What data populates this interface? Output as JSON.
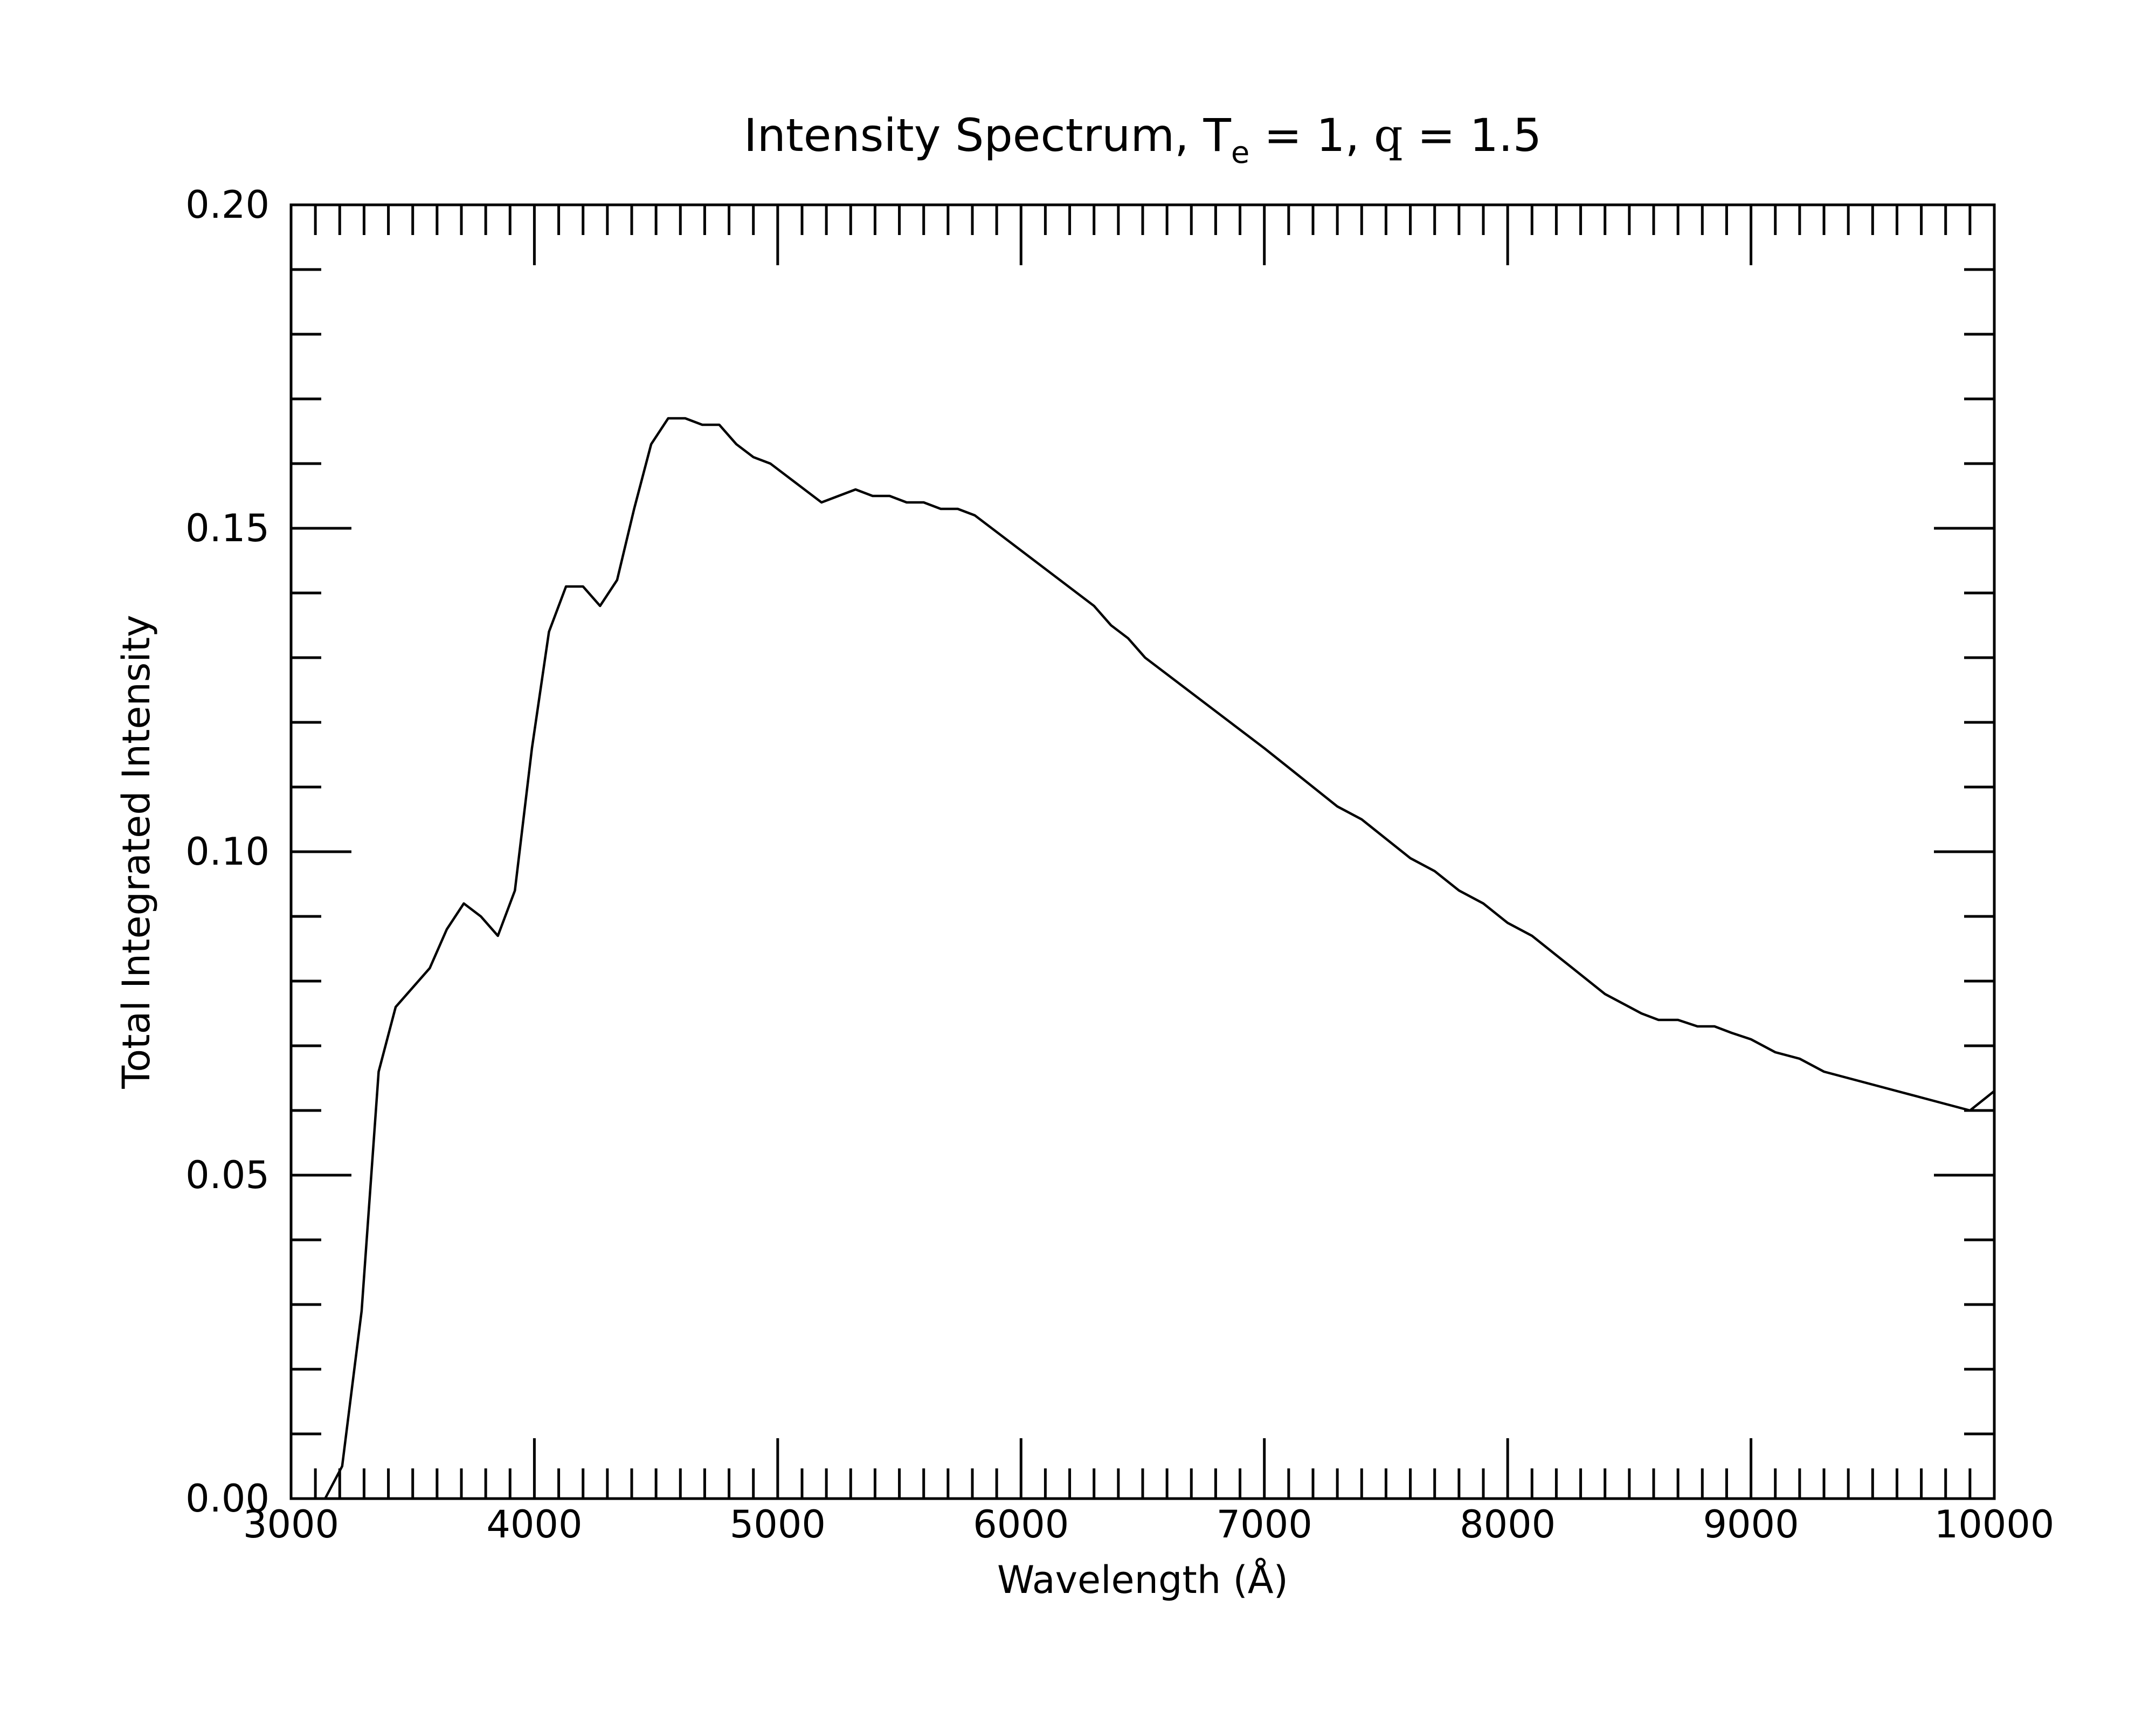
{
  "chart_data": {
    "type": "line",
    "title": {
      "prefix": "Intensity Spectrum, T",
      "subscript": "e",
      "mid": " = 1, ",
      "symbol": "q",
      "suffix": " = 1.5"
    },
    "xlabel": "Wavelength (Å)",
    "ylabel": "Total Integrated Intensity",
    "xlim": [
      3000,
      10000
    ],
    "ylim": [
      0.0,
      0.2
    ],
    "x_major_ticks": [
      3000,
      4000,
      5000,
      6000,
      7000,
      8000,
      9000,
      10000
    ],
    "x_tick_labels": [
      "3000",
      "4000",
      "5000",
      "6000",
      "7000",
      "8000",
      "9000",
      "10000"
    ],
    "x_minor_step": 100,
    "y_major_ticks": [
      0.0,
      0.05,
      0.1,
      0.15,
      0.2
    ],
    "y_tick_labels": [
      "0.00",
      "0.05",
      "0.10",
      "0.15",
      "0.20"
    ],
    "y_minor_step": 0.01,
    "grid": false,
    "legend": "none",
    "series": [
      {
        "x": [
          3100,
          3140,
          3210,
          3290,
          3360,
          3430,
          3500,
          3570,
          3640,
          3710,
          3780,
          3850,
          3920,
          3990,
          4060,
          4130,
          4200,
          4270,
          4340,
          4410,
          4480,
          4550,
          4620,
          4690,
          4760,
          4830,
          4900,
          4970,
          5040,
          5110,
          5180,
          5250,
          5320,
          5390,
          5460,
          5530,
          5600,
          5670,
          5740,
          5810,
          5880,
          5950,
          6020,
          6090,
          6160,
          6230,
          6300,
          6370,
          6440,
          6510,
          6580,
          6650,
          6720,
          6790,
          6860,
          6930,
          7000,
          7100,
          7200,
          7300,
          7400,
          7500,
          7600,
          7700,
          7800,
          7900,
          8000,
          8100,
          8200,
          8300,
          8400,
          8500,
          8550,
          8620,
          8700,
          8780,
          8850,
          8920,
          9000,
          9100,
          9200,
          9300,
          9400,
          9500,
          9600,
          9700,
          9800,
          9900,
          10000
        ],
        "y": [
          0.0,
          0.0,
          0.005,
          0.029,
          0.066,
          0.076,
          0.079,
          0.082,
          0.088,
          0.092,
          0.09,
          0.087,
          0.094,
          0.116,
          0.134,
          0.141,
          0.141,
          0.138,
          0.142,
          0.153,
          0.163,
          0.167,
          0.167,
          0.166,
          0.166,
          0.163,
          0.161,
          0.16,
          0.158,
          0.156,
          0.154,
          0.155,
          0.156,
          0.155,
          0.155,
          0.154,
          0.154,
          0.153,
          0.153,
          0.152,
          0.15,
          0.148,
          0.146,
          0.144,
          0.142,
          0.14,
          0.138,
          0.135,
          0.133,
          0.13,
          0.128,
          0.126,
          0.124,
          0.122,
          0.12,
          0.118,
          0.116,
          0.113,
          0.11,
          0.107,
          0.105,
          0.102,
          0.099,
          0.097,
          0.094,
          0.092,
          0.089,
          0.087,
          0.084,
          0.081,
          0.078,
          0.076,
          0.075,
          0.074,
          0.074,
          0.073,
          0.073,
          0.072,
          0.071,
          0.069,
          0.068,
          0.066,
          0.065,
          0.064,
          0.063,
          0.062,
          0.061,
          0.06,
          0.063
        ]
      }
    ]
  }
}
